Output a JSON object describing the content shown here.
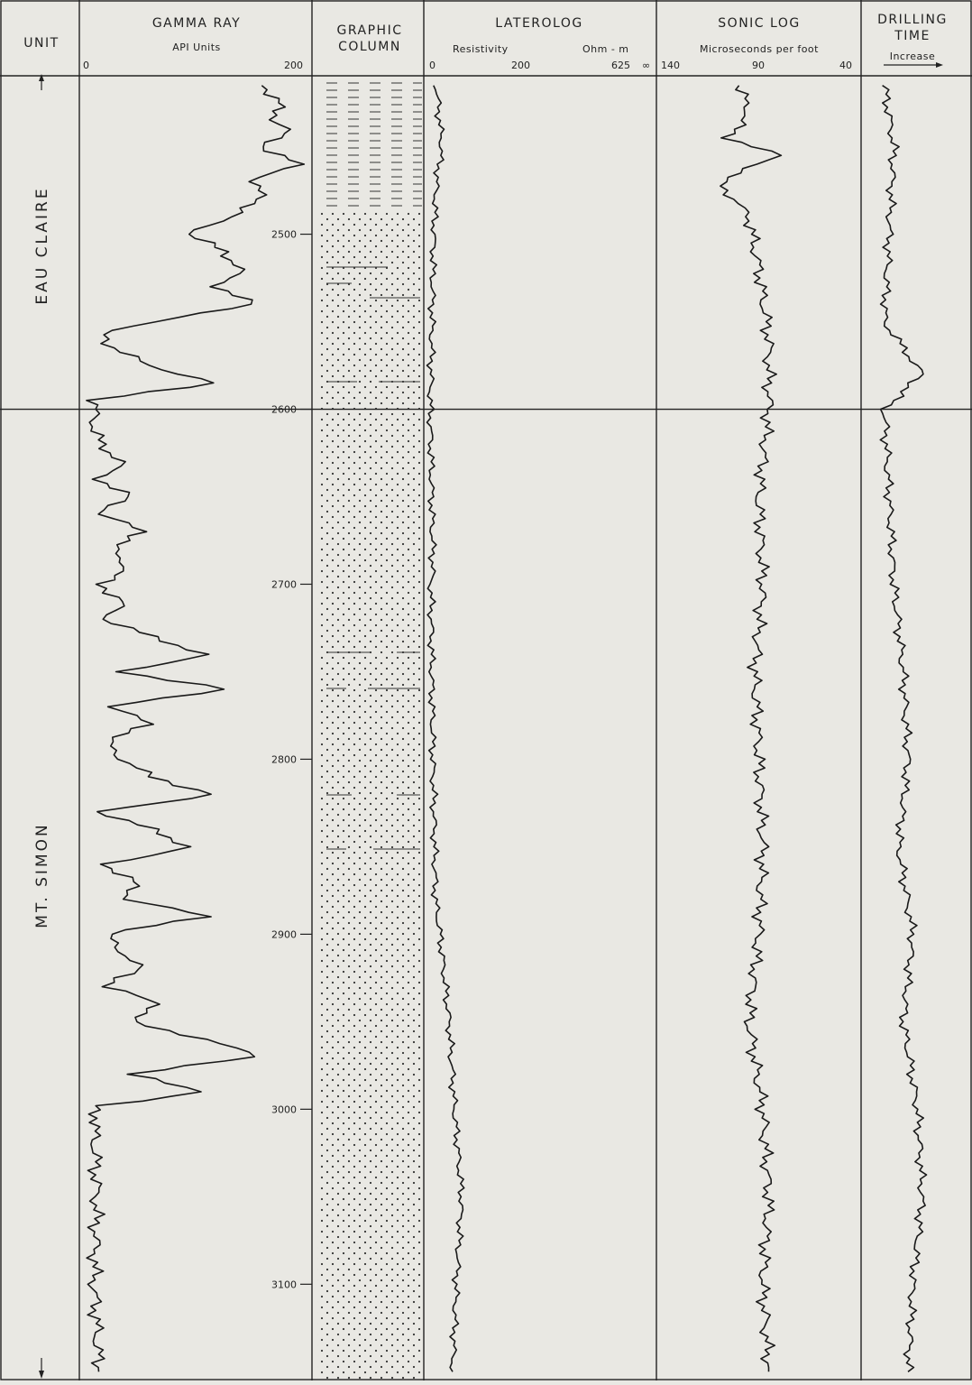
{
  "headers": {
    "unit": "UNIT",
    "gamma_title": "GAMMA RAY",
    "gamma_sub": "API  Units",
    "gamma_min": "0",
    "gamma_max": "200",
    "graphic_1": "GRAPHIC",
    "graphic_2": "COLUMN",
    "lat_title": "LATEROLOG",
    "lat_sub_left": "Resistivity",
    "lat_sub_right": "Ohm - m",
    "lat_t0": "0",
    "lat_t1": "200",
    "lat_t2": "625",
    "lat_t3": "∞",
    "sonic_title": "SONIC  LOG",
    "sonic_sub": "Microseconds  per  foot",
    "sonic_t0": "140",
    "sonic_t1": "90",
    "sonic_t2": "40",
    "drill_1": "DRILLING",
    "drill_2": "TIME",
    "drill_sub": "Increase"
  },
  "units": {
    "upper": "EAU CLAIRE",
    "lower": "MT. SIMON"
  },
  "chart_data": {
    "type": "line",
    "title": "",
    "depth_range": [
      2410,
      3155
    ],
    "unit_boundary_depth": 2600,
    "depth_ticks": [
      "2500",
      "2600",
      "2700",
      "2800",
      "2900",
      "3000",
      "3100"
    ],
    "series": [
      {
        "name": "GAMMA RAY",
        "xlim": [
          0,
          200
        ],
        "points": [
          [
            2415,
            160
          ],
          [
            2425,
            175
          ],
          [
            2432,
            165
          ],
          [
            2440,
            182
          ],
          [
            2450,
            160
          ],
          [
            2460,
            190
          ],
          [
            2470,
            150
          ],
          [
            2480,
            160
          ],
          [
            2490,
            130
          ],
          [
            2500,
            95
          ],
          [
            2510,
            125
          ],
          [
            2520,
            140
          ],
          [
            2530,
            120
          ],
          [
            2540,
            150
          ],
          [
            2545,
            110
          ],
          [
            2555,
            20
          ],
          [
            2565,
            25
          ],
          [
            2575,
            60
          ],
          [
            2585,
            115
          ],
          [
            2595,
            10
          ],
          [
            2610,
            10
          ],
          [
            2620,
            15
          ],
          [
            2630,
            35
          ],
          [
            2640,
            15
          ],
          [
            2650,
            40
          ],
          [
            2660,
            15
          ],
          [
            2670,
            55
          ],
          [
            2680,
            25
          ],
          [
            2690,
            40
          ],
          [
            2700,
            15
          ],
          [
            2710,
            35
          ],
          [
            2720,
            20
          ],
          [
            2730,
            60
          ],
          [
            2740,
            110
          ],
          [
            2750,
            35
          ],
          [
            2760,
            125
          ],
          [
            2770,
            25
          ],
          [
            2780,
            60
          ],
          [
            2790,
            20
          ],
          [
            2800,
            35
          ],
          [
            2810,
            60
          ],
          [
            2820,
            115
          ],
          [
            2830,
            15
          ],
          [
            2840,
            60
          ],
          [
            2850,
            95
          ],
          [
            2860,
            20
          ],
          [
            2870,
            45
          ],
          [
            2880,
            40
          ],
          [
            2890,
            110
          ],
          [
            2900,
            20
          ],
          [
            2910,
            35
          ],
          [
            2920,
            50
          ],
          [
            2930,
            20
          ],
          [
            2940,
            70
          ],
          [
            2950,
            40
          ],
          [
            2960,
            110
          ],
          [
            2970,
            155
          ],
          [
            2980,
            40
          ],
          [
            2990,
            110
          ],
          [
            2998,
            15
          ],
          [
            3010,
            10
          ],
          [
            3050,
            12
          ],
          [
            3100,
            10
          ],
          [
            3150,
            14
          ]
        ]
      },
      {
        "name": "LATEROLOG",
        "xlim": [
          0,
          625
        ],
        "points": [
          [
            2415,
            25
          ],
          [
            2450,
            40
          ],
          [
            2470,
            25
          ],
          [
            2490,
            20
          ],
          [
            2520,
            15
          ],
          [
            2560,
            12
          ],
          [
            2600,
            8
          ],
          [
            2650,
            12
          ],
          [
            2690,
            15
          ],
          [
            2700,
            10
          ],
          [
            2750,
            12
          ],
          [
            2800,
            15
          ],
          [
            2850,
            20
          ],
          [
            2880,
            22
          ],
          [
            2900,
            35
          ],
          [
            2950,
            60
          ],
          [
            3000,
            75
          ],
          [
            3050,
            95
          ],
          [
            3100,
            80
          ],
          [
            3150,
            70
          ]
        ]
      },
      {
        "name": "SONIC LOG",
        "xlim": [
          140,
          40
        ],
        "points": [
          [
            2415,
            100
          ],
          [
            2430,
            95
          ],
          [
            2445,
            105
          ],
          [
            2455,
            80
          ],
          [
            2470,
            110
          ],
          [
            2490,
            95
          ],
          [
            2520,
            90
          ],
          [
            2560,
            85
          ],
          [
            2600,
            85
          ],
          [
            2650,
            90
          ],
          [
            2700,
            88
          ],
          [
            2750,
            92
          ],
          [
            2800,
            90
          ],
          [
            2850,
            88
          ],
          [
            2900,
            90
          ],
          [
            2950,
            95
          ],
          [
            3000,
            88
          ],
          [
            3050,
            85
          ],
          [
            3100,
            88
          ],
          [
            3150,
            85
          ]
        ]
      },
      {
        "name": "DRILLING TIME",
        "xlim": [
          0,
          100
        ],
        "points": [
          [
            2415,
            15
          ],
          [
            2450,
            25
          ],
          [
            2500,
            20
          ],
          [
            2550,
            15
          ],
          [
            2580,
            55
          ],
          [
            2600,
            15
          ],
          [
            2650,
            20
          ],
          [
            2700,
            25
          ],
          [
            2750,
            35
          ],
          [
            2800,
            40
          ],
          [
            2850,
            30
          ],
          [
            2900,
            45
          ],
          [
            2950,
            35
          ],
          [
            3000,
            50
          ],
          [
            3050,
            55
          ],
          [
            3100,
            45
          ],
          [
            3150,
            40
          ]
        ]
      }
    ]
  }
}
